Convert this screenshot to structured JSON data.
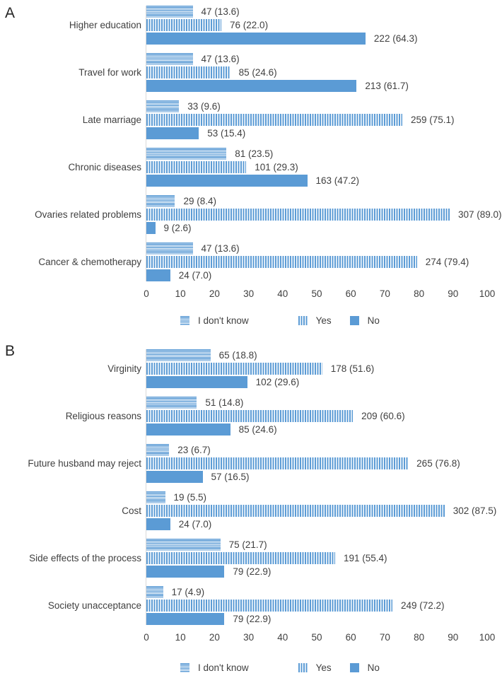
{
  "figure": {
    "accent_color": "#5B9BD5",
    "axis_line_color": "#D9D9D9",
    "text_color": "#404040"
  },
  "chart_data": [
    {
      "type": "bar",
      "orientation": "horizontal",
      "panel_label": "A",
      "value_label_format": "count (percent)",
      "xlim": [
        0,
        100
      ],
      "x_ticks": [
        0,
        10,
        20,
        30,
        40,
        50,
        60,
        70,
        80,
        90,
        100
      ],
      "grid": false,
      "legend_position": "bottom",
      "categories": [
        "Higher education",
        "Travel for work",
        "Late marriage",
        "Chronic diseases",
        "Ovaries related problems",
        "Cancer & chemotherapy"
      ],
      "series": [
        {
          "name": "I don't know",
          "pattern": "horizontal-stripes",
          "counts": [
            47,
            47,
            33,
            81,
            29,
            47
          ],
          "values": [
            13.6,
            13.6,
            9.6,
            23.5,
            8.4,
            13.6
          ],
          "labels": [
            "47 (13.6)",
            "47 (13.6)",
            "33 (9.6)",
            "81 (23.5)",
            "29 (8.4)",
            "47 (13.6)"
          ]
        },
        {
          "name": "Yes",
          "pattern": "vertical-stripes",
          "counts": [
            76,
            85,
            259,
            101,
            307,
            274
          ],
          "values": [
            22.0,
            24.6,
            75.1,
            29.3,
            89.0,
            79.4
          ],
          "labels": [
            "76 (22.0)",
            "85 (24.6)",
            "259 (75.1)",
            "101 (29.3)",
            "307 (89.0)",
            "274 (79.4)"
          ]
        },
        {
          "name": "No",
          "pattern": "solid",
          "counts": [
            222,
            213,
            53,
            163,
            9,
            24
          ],
          "values": [
            64.3,
            61.7,
            15.4,
            47.2,
            2.6,
            7.0
          ],
          "labels": [
            "222 (64.3)",
            "213 (61.7)",
            "53 (15.4)",
            "163 (47.2)",
            "9 (2.6)",
            "24 (7.0)"
          ]
        }
      ],
      "legend": [
        {
          "label": "I don't know",
          "pattern": "horizontal-stripes"
        },
        {
          "label": "Yes",
          "pattern": "vertical-stripes"
        },
        {
          "label": "No",
          "pattern": "solid"
        }
      ]
    },
    {
      "type": "bar",
      "orientation": "horizontal",
      "panel_label": "B",
      "value_label_format": "count (percent)",
      "xlim": [
        0,
        100
      ],
      "x_ticks": [
        0,
        10,
        20,
        30,
        40,
        50,
        60,
        70,
        80,
        90,
        100
      ],
      "grid": false,
      "legend_position": "bottom",
      "categories": [
        "Virginity",
        "Religious reasons",
        "Future husband may reject",
        "Cost",
        "Side effects of the process",
        "Society unacceptance"
      ],
      "series": [
        {
          "name": "I don't know",
          "pattern": "horizontal-stripes",
          "counts": [
            65,
            51,
            23,
            19,
            75,
            17
          ],
          "values": [
            18.8,
            14.8,
            6.7,
            5.5,
            21.7,
            4.9
          ],
          "labels": [
            "65 (18.8)",
            "51 (14.8)",
            "23 (6.7)",
            "19 (5.5)",
            "75 (21.7)",
            "17 (4.9)"
          ]
        },
        {
          "name": "Yes",
          "pattern": "vertical-stripes",
          "counts": [
            178,
            209,
            265,
            302,
            191,
            249
          ],
          "values": [
            51.6,
            60.6,
            76.8,
            87.5,
            55.4,
            72.2
          ],
          "labels": [
            "178 (51.6)",
            "209 (60.6)",
            "265 (76.8)",
            "302 (87.5)",
            "191 (55.4)",
            "249 (72.2)"
          ]
        },
        {
          "name": "No",
          "pattern": "solid",
          "counts": [
            102,
            85,
            57,
            24,
            79,
            79
          ],
          "values": [
            29.6,
            24.6,
            16.5,
            7.0,
            22.9,
            22.9
          ],
          "labels": [
            "102 (29.6)",
            "85 (24.6)",
            "57 (16.5)",
            "24 (7.0)",
            "79 (22.9)",
            "79 (22.9)"
          ]
        }
      ],
      "legend": [
        {
          "label": "I don't know",
          "pattern": "horizontal-stripes"
        },
        {
          "label": "Yes",
          "pattern": "vertical-stripes"
        },
        {
          "label": "No",
          "pattern": "solid"
        }
      ]
    }
  ]
}
